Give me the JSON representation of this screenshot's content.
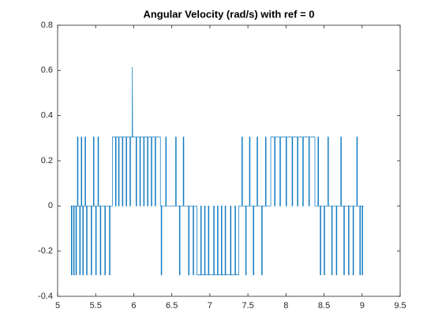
{
  "chart_data": {
    "type": "line",
    "title": "Angular Velocity (rad/s) with ref = 0",
    "xlim": [
      5,
      9.5
    ],
    "xticks": [
      5,
      5.5,
      6,
      6.5,
      7,
      7.5,
      8,
      8.5,
      9,
      9.5
    ],
    "ylim": [
      -0.4,
      0.8
    ],
    "yticks": [
      -0.4,
      -0.2,
      0,
      0.2,
      0.4,
      0.6,
      0.8
    ],
    "grid": false,
    "series": [
      {
        "color": "#0072bd",
        "x": [
          5.17,
          5.18,
          5.18,
          5.188,
          5.188,
          5.21,
          5.21,
          5.218,
          5.218,
          5.24,
          5.24,
          5.248,
          5.248,
          5.26,
          5.26,
          5.268,
          5.268,
          5.29,
          5.29,
          5.298,
          5.298,
          5.31,
          5.31,
          5.318,
          5.318,
          5.33,
          5.33,
          5.338,
          5.338,
          5.36,
          5.36,
          5.368,
          5.368,
          5.38,
          5.38,
          5.388,
          5.388,
          5.44,
          5.44,
          5.448,
          5.448,
          5.47,
          5.47,
          5.478,
          5.478,
          5.5,
          5.5,
          5.508,
          5.508,
          5.53,
          5.53,
          5.538,
          5.538,
          5.56,
          5.56,
          5.568,
          5.568,
          5.62,
          5.62,
          5.628,
          5.628,
          5.68,
          5.68,
          5.688,
          5.688,
          5.72,
          5.72,
          5.76,
          5.76,
          5.768,
          5.768,
          5.8,
          5.8,
          5.808,
          5.808,
          5.85,
          5.85,
          5.858,
          5.858,
          5.9,
          5.9,
          5.908,
          5.908,
          5.95,
          5.95,
          5.958,
          5.958,
          5.98,
          5.982,
          5.985,
          6.03,
          6.03,
          6.038,
          6.038,
          6.08,
          6.08,
          6.088,
          6.088,
          6.13,
          6.13,
          6.138,
          6.138,
          6.18,
          6.18,
          6.188,
          6.188,
          6.23,
          6.23,
          6.238,
          6.238,
          6.28,
          6.28,
          6.288,
          6.288,
          6.35,
          6.35,
          6.36,
          6.36,
          6.368,
          6.368,
          6.42,
          6.42,
          6.428,
          6.428,
          6.55,
          6.55,
          6.558,
          6.558,
          6.6,
          6.6,
          6.608,
          6.608,
          6.65,
          6.65,
          6.658,
          6.658,
          6.72,
          6.72,
          6.728,
          6.728,
          6.78,
          6.78,
          6.788,
          6.788,
          6.83,
          6.83,
          6.88,
          6.88,
          6.888,
          6.888,
          6.93,
          6.93,
          6.938,
          6.938,
          6.98,
          6.98,
          6.988,
          6.988,
          7.05,
          7.05,
          7.058,
          7.058,
          7.1,
          7.1,
          7.108,
          7.108,
          7.15,
          7.15,
          7.158,
          7.158,
          7.2,
          7.2,
          7.208,
          7.208,
          7.27,
          7.27,
          7.278,
          7.278,
          7.33,
          7.33,
          7.338,
          7.338,
          7.38,
          7.38,
          7.42,
          7.42,
          7.428,
          7.428,
          7.47,
          7.47,
          7.478,
          7.478,
          7.52,
          7.52,
          7.528,
          7.528,
          7.57,
          7.57,
          7.578,
          7.578,
          7.62,
          7.62,
          7.628,
          7.628,
          7.68,
          7.68,
          7.688,
          7.688,
          7.73,
          7.73,
          7.738,
          7.738,
          7.8,
          7.8,
          7.85,
          7.85,
          7.858,
          7.858,
          7.92,
          7.92,
          7.928,
          7.928,
          8.0,
          8.0,
          8.008,
          8.008,
          8.08,
          8.08,
          8.088,
          8.088,
          8.15,
          8.15,
          8.158,
          8.158,
          8.22,
          8.22,
          8.228,
          8.228,
          8.3,
          8.3,
          8.308,
          8.308,
          8.38,
          8.38,
          8.42,
          8.42,
          8.428,
          8.428,
          8.45,
          8.45,
          8.458,
          8.458,
          8.5,
          8.5,
          8.508,
          8.508,
          8.55,
          8.55,
          8.558,
          8.558,
          8.6,
          8.6,
          8.608,
          8.608,
          8.66,
          8.66,
          8.668,
          8.668,
          8.72,
          8.72,
          8.728,
          8.728,
          8.76,
          8.76,
          8.768,
          8.768,
          8.82,
          8.82,
          8.828,
          8.828,
          8.88,
          8.88,
          8.888,
          8.888,
          8.93,
          8.93,
          8.938,
          8.938,
          8.97,
          8.97,
          8.978,
          8.978,
          9.0,
          9.0,
          9.008,
          9.008,
          9.02
        ],
        "values": [
          0,
          0,
          -0.305,
          -0.305,
          0,
          0,
          -0.305,
          -0.305,
          0,
          0,
          -0.305,
          -0.305,
          0,
          0,
          0.305,
          0.305,
          0,
          0,
          -0.305,
          -0.305,
          0,
          0,
          0.305,
          0.305,
          0,
          0,
          -0.305,
          -0.305,
          0,
          0,
          0.305,
          0.305,
          0,
          0,
          -0.305,
          -0.305,
          0,
          0,
          -0.305,
          -0.305,
          0,
          0,
          0.305,
          0.305,
          0,
          0,
          -0.305,
          -0.305,
          0,
          0,
          0.305,
          0.305,
          0,
          0,
          -0.305,
          -0.305,
          0,
          0,
          -0.305,
          -0.305,
          0,
          0,
          -0.305,
          -0.305,
          0,
          0,
          0.305,
          0.305,
          0,
          0,
          0.305,
          0.305,
          0,
          0,
          0.305,
          0.305,
          0,
          0,
          0.305,
          0.305,
          0,
          0,
          0.305,
          0.305,
          0,
          0,
          0.305,
          0.305,
          0.615,
          0.305,
          0.305,
          0,
          0,
          0.305,
          0.305,
          0,
          0,
          0.305,
          0.305,
          0,
          0,
          0.305,
          0.305,
          0,
          0,
          0.305,
          0.305,
          0,
          0,
          0.305,
          0.305,
          0,
          0,
          0.305,
          0.305,
          0,
          0,
          -0.305,
          -0.305,
          0,
          0,
          0.305,
          0.305,
          0,
          0,
          0.305,
          0.305,
          0,
          0,
          -0.305,
          -0.305,
          0,
          0,
          0.305,
          0.305,
          0,
          0,
          -0.305,
          -0.305,
          0,
          0,
          -0.305,
          -0.305,
          0,
          0,
          -0.305,
          -0.305,
          0,
          0,
          -0.305,
          -0.305,
          0,
          0,
          -0.305,
          -0.305,
          0,
          0,
          -0.305,
          -0.305,
          0,
          0,
          -0.305,
          -0.305,
          0,
          0,
          -0.305,
          -0.305,
          0,
          0,
          -0.305,
          -0.305,
          0,
          0,
          -0.305,
          -0.305,
          0,
          0,
          -0.305,
          -0.305,
          0,
          0,
          -0.305,
          -0.305,
          0,
          0,
          0.305,
          0.305,
          0,
          0,
          -0.305,
          -0.305,
          0,
          0,
          0.305,
          0.305,
          0,
          0,
          -0.305,
          -0.305,
          0,
          0,
          0.305,
          0.305,
          0,
          0,
          -0.305,
          -0.305,
          0,
          0,
          0.305,
          0.305,
          0,
          0,
          0.305,
          0.305,
          0,
          0,
          0.305,
          0.305,
          0,
          0,
          0.305,
          0.305,
          0,
          0,
          0.305,
          0.305,
          0,
          0,
          0.305,
          0.305,
          0,
          0,
          0.305,
          0.305,
          0,
          0,
          0.305,
          0.305,
          0,
          0,
          0.305,
          0.305,
          0,
          0,
          0.305,
          0.305,
          0,
          0,
          -0.305,
          -0.305,
          0,
          0,
          -0.305,
          -0.305,
          0,
          0,
          0.305,
          0.305,
          0,
          0,
          -0.305,
          -0.305,
          0,
          0,
          -0.305,
          -0.305,
          0,
          0,
          0.305,
          0.305,
          0,
          0,
          -0.305,
          -0.305,
          0,
          0,
          -0.305,
          -0.305,
          0,
          0,
          -0.305,
          -0.305,
          0,
          0,
          0.305,
          0.305,
          0,
          0,
          -0.305,
          -0.305,
          0,
          0,
          -0.305,
          -0.305,
          0,
          0
        ]
      }
    ]
  }
}
